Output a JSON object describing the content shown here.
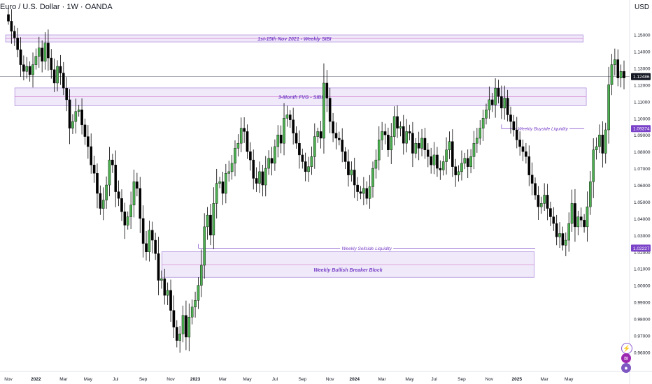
{
  "header": {
    "title": "Euro / U.S. Dollar · 1W · OANDA",
    "currency": "USD"
  },
  "colors": {
    "up": "#4caf50",
    "down": "#000000",
    "zone_fill": "#e9e1f7",
    "zone_border": "#9c74d6",
    "zone_text": "#7a42c8",
    "price_badge": "#131722",
    "level_badge": "#7a42c8"
  },
  "icons": {
    "flash": "lightning-icon",
    "layers": "layers-icon",
    "record": "record-icon"
  },
  "chart_data": {
    "type": "candlestick",
    "title": "Euro / U.S. Dollar · 1W · OANDA",
    "ylabel": "USD",
    "ylim": [
      0.9485,
      1.1615
    ],
    "y_ticks": [
      "1.15000",
      "1.14000",
      "1.13000",
      "1.12000",
      "1.11000",
      "1.10000",
      "1.09000",
      "1.08000",
      "1.07000",
      "1.06000",
      "1.05000",
      "1.04000",
      "1.03000",
      "1.02000",
      "1.01000",
      "1.00000",
      "0.99000",
      "0.98000",
      "0.97000",
      "0.96000"
    ],
    "x_ticks": [
      {
        "label": "Nov",
        "week": 0
      },
      {
        "label": "2022",
        "week": 9
      },
      {
        "label": "Mar",
        "week": 18
      },
      {
        "label": "May",
        "week": 26
      },
      {
        "label": "Jul",
        "week": 35
      },
      {
        "label": "Sep",
        "week": 44
      },
      {
        "label": "Nov",
        "week": 53
      },
      {
        "label": "2023",
        "week": 61
      },
      {
        "label": "Mar",
        "week": 70
      },
      {
        "label": "May",
        "week": 78
      },
      {
        "label": "Jul",
        "week": 87
      },
      {
        "label": "Sep",
        "week": 96
      },
      {
        "label": "Nov",
        "week": 105
      },
      {
        "label": "2024",
        "week": 113
      },
      {
        "label": "Mar",
        "week": 122
      },
      {
        "label": "May",
        "week": 131
      },
      {
        "label": "Jul",
        "week": 139
      },
      {
        "label": "Sep",
        "week": 148
      },
      {
        "label": "Nov",
        "week": 157
      },
      {
        "label": "2025",
        "week": 166
      },
      {
        "label": "Mar",
        "week": 175
      },
      {
        "label": "May",
        "week": 183
      }
    ],
    "grid": false,
    "closes": [
      1.158,
      1.152,
      1.148,
      1.141,
      1.132,
      1.128,
      1.131,
      1.126,
      1.132,
      1.137,
      1.142,
      1.134,
      1.145,
      1.136,
      1.129,
      1.121,
      1.131,
      1.127,
      1.118,
      1.111,
      1.094,
      1.098,
      1.104,
      1.105,
      1.096,
      1.089,
      1.083,
      1.072,
      1.067,
      1.055,
      1.046,
      1.051,
      1.06,
      1.075,
      1.072,
      1.056,
      1.052,
      1.044,
      1.036,
      1.041,
      1.048,
      1.062,
      1.058,
      1.04,
      1.025,
      1.02,
      1.033,
      1.027,
      1.019,
      1.003,
      1.004,
      0.994,
      0.997,
      0.985,
      0.975,
      0.967,
      0.971,
      0.982,
      0.969,
      0.981,
      0.987,
      0.991,
      1.0,
      1.012,
      1.035,
      1.042,
      1.03,
      1.049,
      1.061,
      1.062,
      1.055,
      1.067,
      1.068,
      1.073,
      1.082,
      1.085,
      1.094,
      1.092,
      1.08,
      1.075,
      1.064,
      1.061,
      1.068,
      1.06,
      1.07,
      1.076,
      1.073,
      1.083,
      1.09,
      1.085,
      1.1,
      1.102,
      1.099,
      1.091,
      1.085,
      1.078,
      1.074,
      1.068,
      1.071,
      1.077,
      1.089,
      1.092,
      1.088,
      1.121,
      1.112,
      1.098,
      1.091,
      1.088,
      1.087,
      1.08,
      1.074,
      1.066,
      1.069,
      1.06,
      1.056,
      1.055,
      1.058,
      1.052,
      1.059,
      1.07,
      1.075,
      1.087,
      1.092,
      1.09,
      1.081,
      1.089,
      1.101,
      1.094,
      1.095,
      1.085,
      1.092,
      1.091,
      1.079,
      1.085,
      1.082,
      1.088,
      1.081,
      1.077,
      1.072,
      1.078,
      1.07,
      1.069,
      1.074,
      1.081,
      1.086,
      1.071,
      1.066,
      1.068,
      1.073,
      1.076,
      1.071,
      1.077,
      1.085,
      1.088,
      1.094,
      1.1,
      1.105,
      1.111,
      1.108,
      1.118,
      1.113,
      1.106,
      1.112,
      1.102,
      1.098,
      1.093,
      1.087,
      1.083,
      1.08,
      1.077,
      1.066,
      1.061,
      1.054,
      1.047,
      1.049,
      1.054,
      1.046,
      1.041,
      1.037,
      1.029,
      1.031,
      1.024,
      1.027,
      1.037,
      1.049,
      1.035,
      1.041,
      1.039,
      1.035,
      1.047,
      1.062,
      1.081,
      1.083,
      1.09,
      1.079,
      1.093,
      1.12,
      1.132,
      1.135,
      1.124,
      1.128,
      1.124
    ],
    "zones": [
      {
        "label": "1st-15th Nov 2021 - Weekly SIBI",
        "x0_week": 0,
        "x1_week": 187,
        "y_top": 1.1498,
        "y_bottom": 1.1456,
        "mid": 1.1477
      },
      {
        "label": "3-Month FVG - SIBI",
        "x0_week": 3,
        "x1_week": 188,
        "y_top": 1.1181,
        "y_bottom": 1.1075,
        "mid": 1.1128
      },
      {
        "label": "Weekly Bullish Breaker Block",
        "x0_week": 51,
        "x1_week": 171,
        "y_top": 1.0201,
        "y_bottom": 1.0048,
        "mid": 1.0124
      }
    ],
    "levels": [
      {
        "label": "Weekly Sellside Liquidity",
        "price": 1.02227,
        "price_label": "1.02227",
        "x0_week": 62,
        "x1_week": 172
      },
      {
        "label": "Weekly Buyside Liquidity",
        "price": 1.09374,
        "price_label": "1.09374",
        "x0_week": 161,
        "x1_week": 188
      }
    ],
    "current_price": {
      "price": 1.12486,
      "label": "1.12486"
    }
  }
}
